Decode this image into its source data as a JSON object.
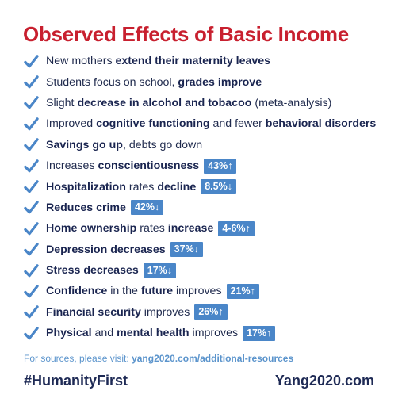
{
  "title": "Observed Effects of Basic Income",
  "items": [
    {
      "parts": [
        {
          "t": "New mothers ",
          "b": false
        },
        {
          "t": "extend their maternity leaves",
          "b": true
        }
      ],
      "badge": ""
    },
    {
      "parts": [
        {
          "t": "Students focus on school, ",
          "b": false
        },
        {
          "t": "grades improve",
          "b": true
        }
      ],
      "badge": ""
    },
    {
      "parts": [
        {
          "t": "Slight ",
          "b": false
        },
        {
          "t": "decrease in alcohol and tobacoo",
          "b": true
        },
        {
          "t": " (meta-analysis)",
          "b": false
        }
      ],
      "badge": ""
    },
    {
      "parts": [
        {
          "t": "Improved ",
          "b": false
        },
        {
          "t": "cognitive functioning",
          "b": true
        },
        {
          "t": " and fewer ",
          "b": false
        },
        {
          "t": "behavioral disorders",
          "b": true
        }
      ],
      "badge": ""
    },
    {
      "parts": [
        {
          "t": "Savings go up",
          "b": true
        },
        {
          "t": ", debts go down",
          "b": false
        }
      ],
      "badge": ""
    },
    {
      "parts": [
        {
          "t": "Increases ",
          "b": false
        },
        {
          "t": "conscientiousness",
          "b": true
        }
      ],
      "badge": "43%↑"
    },
    {
      "parts": [
        {
          "t": "Hospitalization",
          "b": true
        },
        {
          "t": " rates ",
          "b": false
        },
        {
          "t": "decline",
          "b": true
        }
      ],
      "badge": "8.5%↓"
    },
    {
      "parts": [
        {
          "t": "Reduces crime",
          "b": true
        }
      ],
      "badge": "42%↓"
    },
    {
      "parts": [
        {
          "t": "Home ownership",
          "b": true
        },
        {
          "t": " rates ",
          "b": false
        },
        {
          "t": "increase",
          "b": true
        }
      ],
      "badge": "4-6%↑"
    },
    {
      "parts": [
        {
          "t": "Depression decreases",
          "b": true
        }
      ],
      "badge": "37%↓"
    },
    {
      "parts": [
        {
          "t": "Stress decreases",
          "b": true
        }
      ],
      "badge": "17%↓"
    },
    {
      "parts": [
        {
          "t": "Confidence",
          "b": true
        },
        {
          "t": " in the ",
          "b": false
        },
        {
          "t": "future",
          "b": true
        },
        {
          "t": " improves",
          "b": false
        }
      ],
      "badge": "21%↑"
    },
    {
      "parts": [
        {
          "t": "Financial security",
          "b": true
        },
        {
          "t": " improves",
          "b": false
        }
      ],
      "badge": "26%↑"
    },
    {
      "parts": [
        {
          "t": "Physical",
          "b": true
        },
        {
          "t": " and ",
          "b": false
        },
        {
          "t": "mental health",
          "b": true
        },
        {
          "t": " improves",
          "b": false
        }
      ],
      "badge": "17%↑"
    }
  ],
  "sources": {
    "prefix": "For sources, please visit: ",
    "link": "yang2020.com/additional-resources"
  },
  "hashtag": "#HumanityFirst",
  "site": "Yang2020.com",
  "colors": {
    "title": "#c8202f",
    "check": "#4a86c8",
    "badge": "#4a86c8",
    "navy": "#1e2a55"
  },
  "icons": {
    "check": "checkmark-icon"
  }
}
